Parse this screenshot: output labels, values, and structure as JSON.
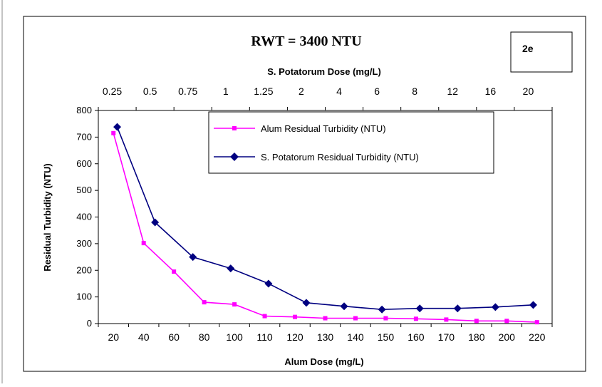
{
  "colors": {
    "alum": "#ff00ff",
    "potatorum": "#000080",
    "frame": "#000000"
  },
  "chart_data": {
    "type": "line",
    "title": "RWT = 3400 NTU",
    "badge": "2e",
    "xlabel": "Alum Dose (mg/L)",
    "x2label": "S. Potatorum Dose (mg/L)",
    "ylabel": "Residual Turbidity (NTU)",
    "ylim": [
      0,
      800
    ],
    "yticks": [
      "0",
      "100",
      "200",
      "300",
      "400",
      "500",
      "600",
      "700",
      "800"
    ],
    "bottom_ticks": [
      "20",
      "40",
      "60",
      "80",
      "100",
      "110",
      "120",
      "130",
      "140",
      "150",
      "160",
      "170",
      "180",
      "200",
      "220"
    ],
    "top_ticks": [
      "0.25",
      "0.5",
      "0.75",
      "1",
      "1.25",
      "2",
      "4",
      "6",
      "8",
      "12",
      "16",
      "20"
    ],
    "grid": false,
    "legend_position": "top-right",
    "series": [
      {
        "name": "Alum Residual Turbidity (NTU)",
        "axis": "Alum Dose (mg/L)",
        "marker": "square",
        "x": [
          "20",
          "40",
          "60",
          "80",
          "100",
          "110",
          "120",
          "130",
          "140",
          "150",
          "160",
          "170",
          "180",
          "200",
          "220"
        ],
        "values": [
          715,
          302,
          195,
          80,
          72,
          28,
          25,
          20,
          20,
          20,
          18,
          15,
          10,
          10,
          5
        ]
      },
      {
        "name": "S. Potatorum  Residual Turbidity (NTU)",
        "axis": "S. Potatorum Dose (mg/L)",
        "marker": "diamond",
        "x": [
          "0.25",
          "0.5",
          "0.75",
          "1",
          "1.25",
          "2",
          "4",
          "6",
          "8",
          "12",
          "16",
          "20"
        ],
        "values": [
          738,
          380,
          250,
          207,
          150,
          78,
          65,
          53,
          57,
          57,
          62,
          70
        ]
      }
    ]
  }
}
